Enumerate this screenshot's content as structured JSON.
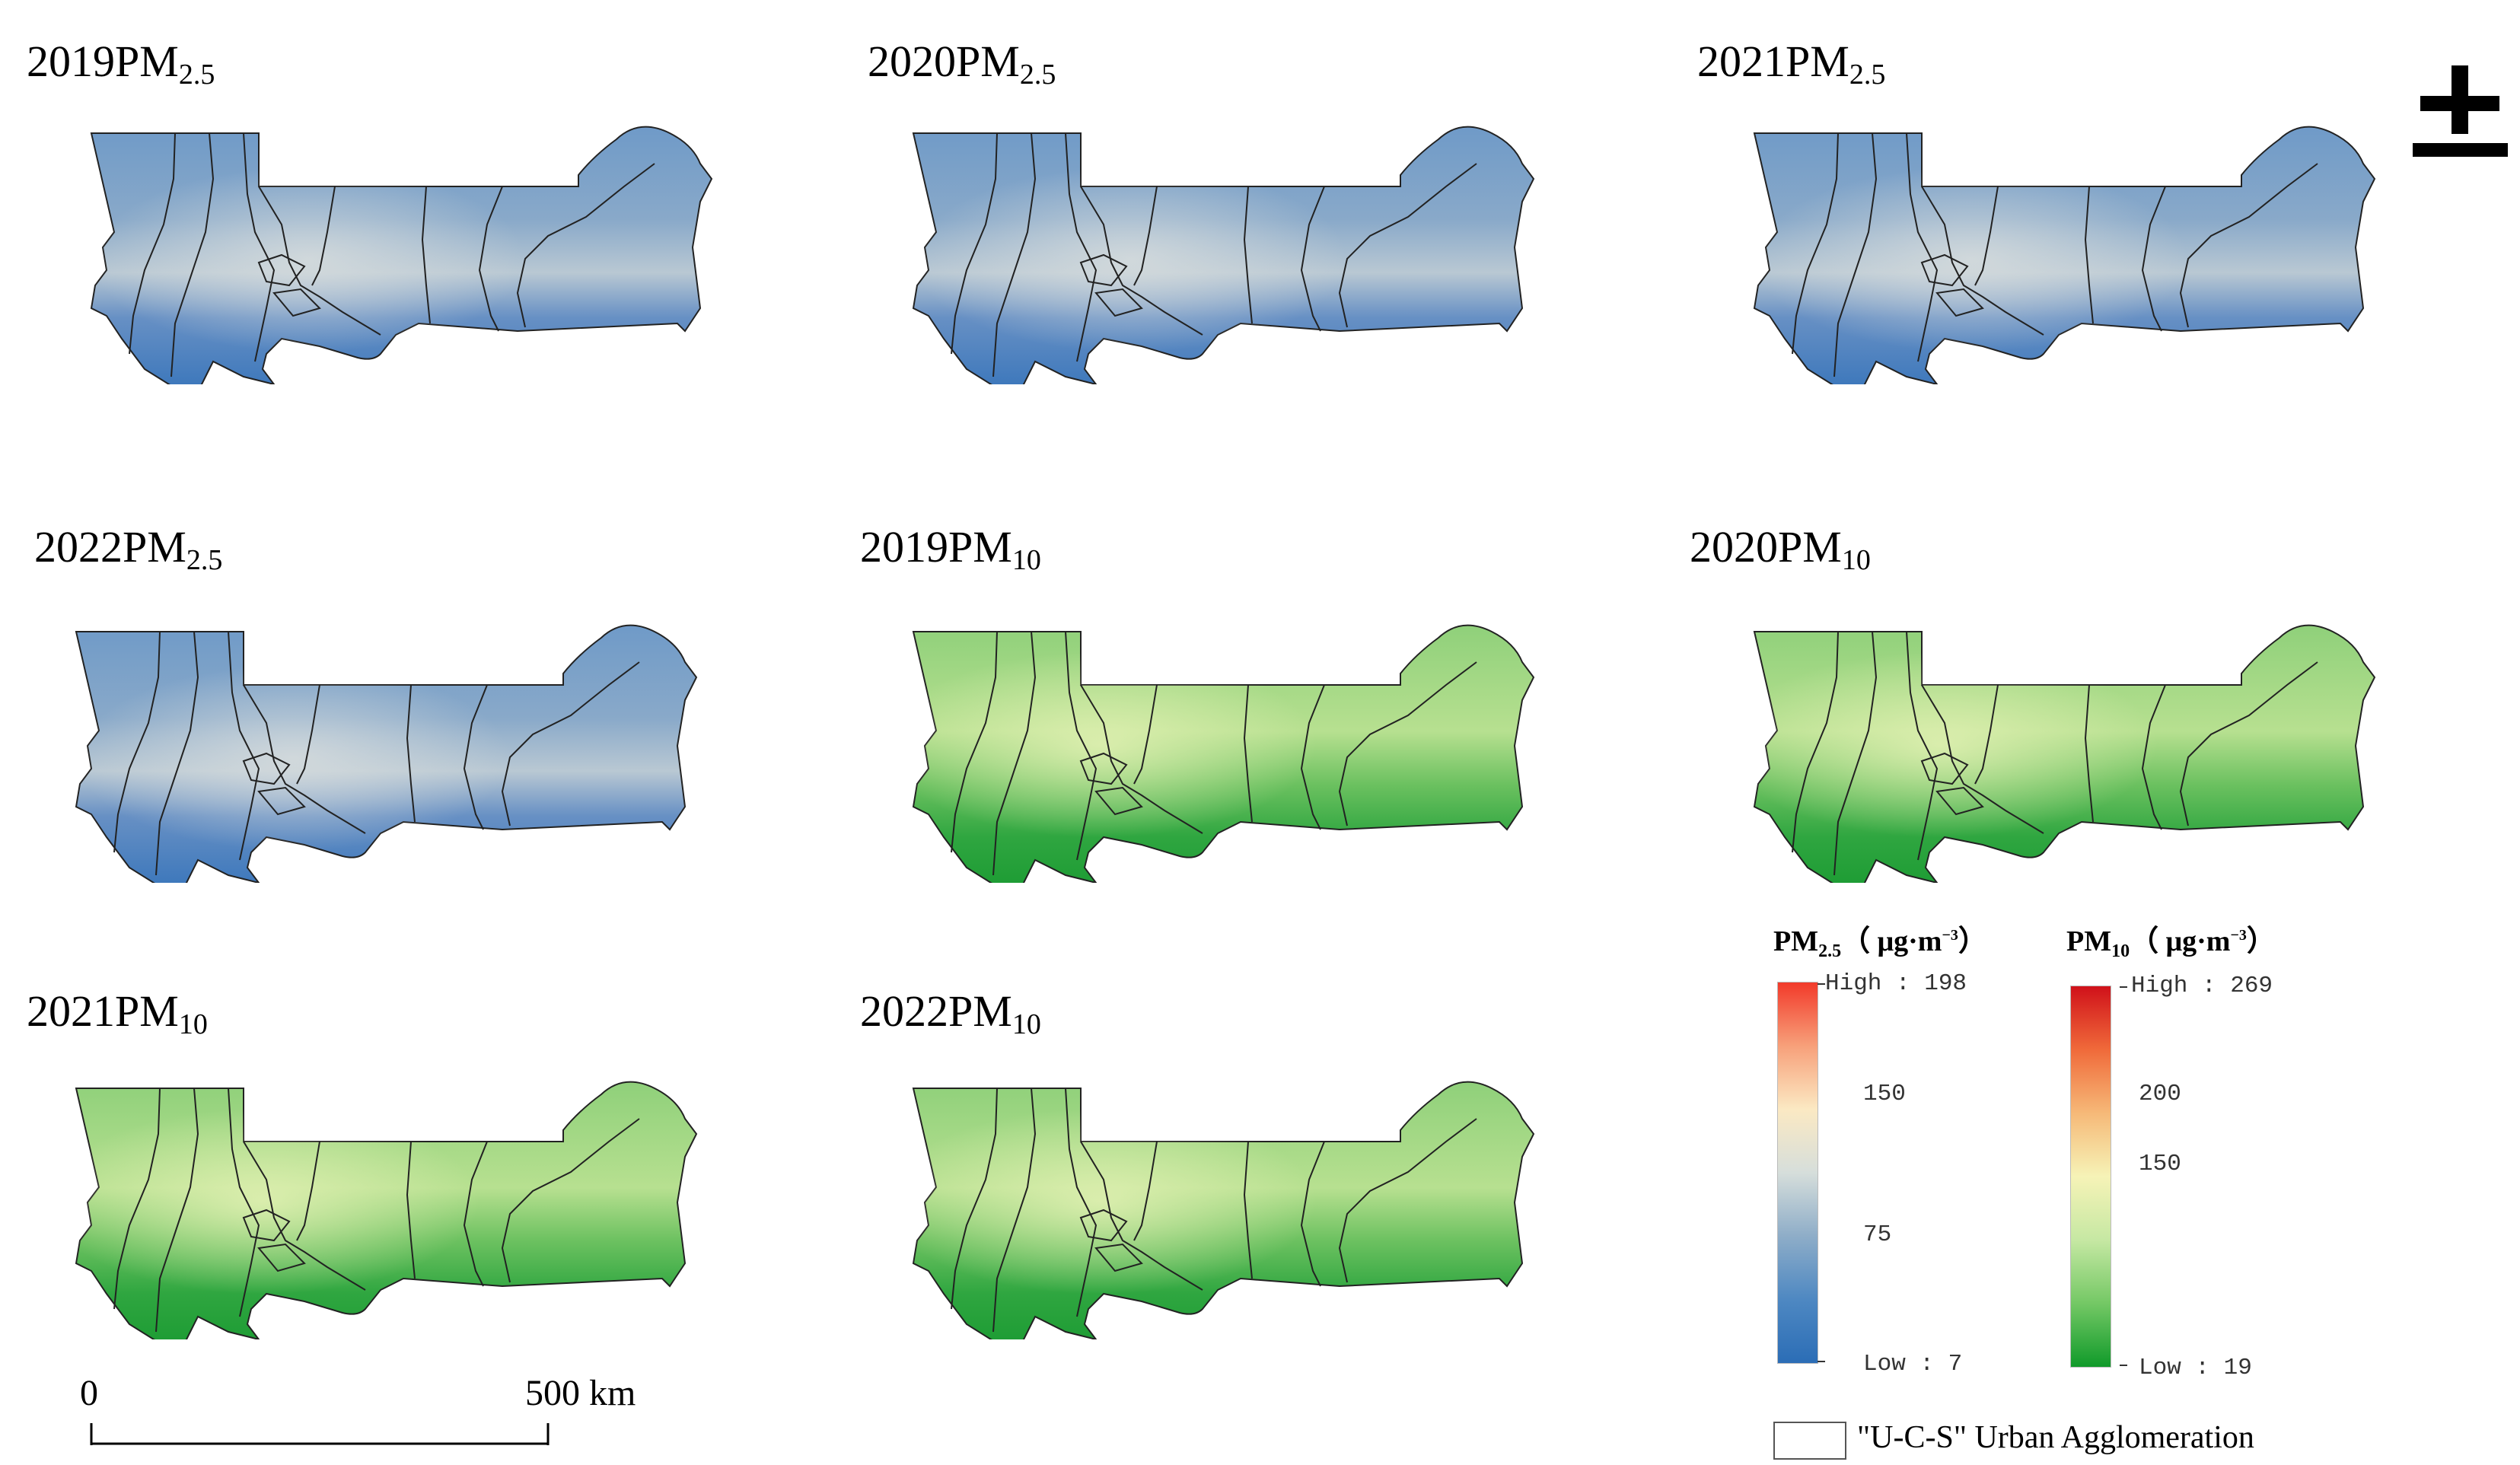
{
  "panels": [
    {
      "id": "p2019pm25",
      "year": "2019",
      "label": "PM",
      "sub": "2.5",
      "scheme": "blue"
    },
    {
      "id": "p2020pm25",
      "year": "2020",
      "label": "PM",
      "sub": "2.5",
      "scheme": "blue"
    },
    {
      "id": "p2021pm25",
      "year": "2021",
      "label": "PM",
      "sub": "2.5",
      "scheme": "blue"
    },
    {
      "id": "p2022pm25",
      "year": "2022",
      "label": "PM",
      "sub": "2.5",
      "scheme": "blue"
    },
    {
      "id": "p2019pm10",
      "year": "2019",
      "label": "PM",
      "sub": "10",
      "scheme": "green"
    },
    {
      "id": "p2020pm10",
      "year": "2020",
      "label": "PM",
      "sub": "10",
      "scheme": "green"
    },
    {
      "id": "p2021pm10",
      "year": "2021",
      "label": "PM",
      "sub": "10",
      "scheme": "green"
    },
    {
      "id": "p2022pm10",
      "year": "2022",
      "label": "PM",
      "sub": "10",
      "scheme": "green"
    }
  ],
  "legend": {
    "pm25": {
      "title_main": "PM",
      "title_sub": "2.5",
      "title_unit_open": "（ μg·m",
      "title_sup": "−3",
      "title_unit_close": "）",
      "high_label": "High : 198",
      "low_label": "Low : 7",
      "mid_labels": [
        "150",
        "75"
      ],
      "colors": [
        "#f23a2a",
        "#f7a07a",
        "#fbe9c3",
        "#d6dedb",
        "#8eadc8",
        "#4e88c2",
        "#2b6db6"
      ]
    },
    "pm10": {
      "title_main": "PM",
      "title_sub": "10",
      "title_unit_open": "（ μg·m",
      "title_sup": "−3",
      "title_unit_close": "）",
      "high_label": "High : 269",
      "low_label": "Low : 19",
      "mid_labels": [
        "200",
        "150"
      ],
      "colors": [
        "#d0111a",
        "#f06a3a",
        "#f6b978",
        "#f6f3b7",
        "#c6e8a3",
        "#74c865",
        "#109a2a"
      ]
    }
  },
  "scale_bar": {
    "start": "0",
    "end": "500",
    "unit": "km"
  },
  "boundary_legend": "\"U-C-S\" Urban Agglomeration",
  "colors": {
    "pm25_base": "#6b95c6",
    "pm25_light": "#cfd8dc",
    "pm25_dark": "#3c77bb",
    "pm10_base": "#8ed173",
    "pm10_light": "#d8edaa",
    "pm10_dark": "#1c9c34"
  }
}
